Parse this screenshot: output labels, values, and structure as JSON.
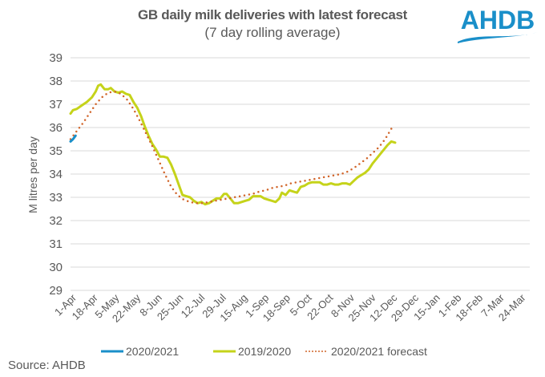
{
  "chart_data": {
    "type": "line",
    "title": "GB daily milk deliveries with latest forecast",
    "subtitle": "(7 day rolling average)",
    "ylabel": "M litres per day",
    "xlabel": "",
    "ylim": [
      29,
      39
    ],
    "yticks": [
      29,
      30,
      31,
      32,
      33,
      34,
      35,
      36,
      37,
      38,
      39
    ],
    "grid": true,
    "legend_position": "bottom",
    "x_days": 365,
    "xtick_labels": [
      "1-Apr",
      "18-Apr",
      "5-May",
      "22-May",
      "8-Jun",
      "25-Jun",
      "12-Jul",
      "29-Jul",
      "15-Aug",
      "1-Sep",
      "18-Sep",
      "5-Oct",
      "22-Oct",
      "8-Nov",
      "25-Nov",
      "12-Dec",
      "29-Dec",
      "15-Jan",
      "1-Feb",
      "18-Feb",
      "7-Mar",
      "24-Mar"
    ],
    "xtick_step_days": 17,
    "series": [
      {
        "name": "2020/2021",
        "color": "#1a8fc9",
        "style": "solid",
        "points": [
          [
            0,
            35.4
          ],
          [
            2,
            35.5
          ],
          [
            4,
            35.65
          ]
        ]
      },
      {
        "name": "2019/2020",
        "color": "#c5d31a",
        "style": "solid",
        "points": [
          [
            0,
            36.6
          ],
          [
            2,
            36.75
          ],
          [
            5,
            36.8
          ],
          [
            9,
            36.95
          ],
          [
            13,
            37.1
          ],
          [
            17,
            37.3
          ],
          [
            20,
            37.55
          ],
          [
            22,
            37.8
          ],
          [
            24,
            37.85
          ],
          [
            27,
            37.65
          ],
          [
            30,
            37.65
          ],
          [
            32,
            37.7
          ],
          [
            35,
            37.55
          ],
          [
            38,
            37.5
          ],
          [
            41,
            37.55
          ],
          [
            44,
            37.45
          ],
          [
            47,
            37.4
          ],
          [
            50,
            37.1
          ],
          [
            53,
            36.85
          ],
          [
            56,
            36.5
          ],
          [
            59,
            36.05
          ],
          [
            62,
            35.65
          ],
          [
            65,
            35.3
          ],
          [
            68,
            35.05
          ],
          [
            71,
            34.75
          ],
          [
            74,
            34.75
          ],
          [
            77,
            34.7
          ],
          [
            80,
            34.4
          ],
          [
            83,
            34.0
          ],
          [
            86,
            33.55
          ],
          [
            89,
            33.1
          ],
          [
            92,
            33.05
          ],
          [
            95,
            33.0
          ],
          [
            98,
            32.85
          ],
          [
            101,
            32.75
          ],
          [
            104,
            32.8
          ],
          [
            107,
            32.7
          ],
          [
            110,
            32.75
          ],
          [
            113,
            32.85
          ],
          [
            116,
            32.95
          ],
          [
            119,
            32.95
          ],
          [
            122,
            33.15
          ],
          [
            124,
            33.15
          ],
          [
            127,
            32.95
          ],
          [
            130,
            32.75
          ],
          [
            133,
            32.75
          ],
          [
            136,
            32.8
          ],
          [
            139,
            32.85
          ],
          [
            142,
            32.9
          ],
          [
            145,
            33.05
          ],
          [
            148,
            33.05
          ],
          [
            151,
            33.05
          ],
          [
            154,
            32.95
          ],
          [
            157,
            32.9
          ],
          [
            160,
            32.85
          ],
          [
            163,
            32.8
          ],
          [
            166,
            32.95
          ],
          [
            168,
            33.2
          ],
          [
            171,
            33.1
          ],
          [
            174,
            33.3
          ],
          [
            177,
            33.25
          ],
          [
            180,
            33.2
          ],
          [
            183,
            33.45
          ],
          [
            186,
            33.5
          ],
          [
            189,
            33.6
          ],
          [
            192,
            33.65
          ],
          [
            195,
            33.65
          ],
          [
            198,
            33.65
          ],
          [
            201,
            33.55
          ],
          [
            204,
            33.55
          ],
          [
            207,
            33.6
          ],
          [
            210,
            33.55
          ],
          [
            213,
            33.55
          ],
          [
            216,
            33.6
          ],
          [
            219,
            33.6
          ],
          [
            222,
            33.55
          ],
          [
            225,
            33.7
          ],
          [
            228,
            33.85
          ],
          [
            231,
            33.95
          ],
          [
            234,
            34.05
          ],
          [
            237,
            34.2
          ],
          [
            240,
            34.45
          ],
          [
            243,
            34.65
          ],
          [
            246,
            34.85
          ],
          [
            249,
            35.05
          ],
          [
            252,
            35.25
          ],
          [
            255,
            35.4
          ],
          [
            258,
            35.35
          ]
        ]
      },
      {
        "name": "2020/2021 forecast",
        "color": "#d1652a",
        "style": "dotted",
        "points": [
          [
            0,
            35.5
          ],
          [
            5,
            35.85
          ],
          [
            10,
            36.2
          ],
          [
            15,
            36.6
          ],
          [
            20,
            37.0
          ],
          [
            25,
            37.3
          ],
          [
            30,
            37.5
          ],
          [
            35,
            37.55
          ],
          [
            40,
            37.45
          ],
          [
            45,
            37.2
          ],
          [
            50,
            36.8
          ],
          [
            55,
            36.3
          ],
          [
            60,
            35.75
          ],
          [
            65,
            35.2
          ],
          [
            70,
            34.6
          ],
          [
            75,
            34.0
          ],
          [
            80,
            33.45
          ],
          [
            85,
            33.1
          ],
          [
            90,
            32.9
          ],
          [
            95,
            32.8
          ],
          [
            100,
            32.75
          ],
          [
            105,
            32.75
          ],
          [
            110,
            32.8
          ],
          [
            115,
            32.85
          ],
          [
            120,
            32.9
          ],
          [
            125,
            32.95
          ],
          [
            130,
            33.0
          ],
          [
            135,
            33.05
          ],
          [
            140,
            33.1
          ],
          [
            145,
            33.15
          ],
          [
            150,
            33.25
          ],
          [
            155,
            33.3
          ],
          [
            160,
            33.4
          ],
          [
            165,
            33.45
          ],
          [
            170,
            33.5
          ],
          [
            175,
            33.6
          ],
          [
            180,
            33.65
          ],
          [
            185,
            33.7
          ],
          [
            190,
            33.75
          ],
          [
            195,
            33.8
          ],
          [
            200,
            33.85
          ],
          [
            205,
            33.9
          ],
          [
            210,
            33.95
          ],
          [
            215,
            34.0
          ],
          [
            220,
            34.1
          ],
          [
            225,
            34.25
          ],
          [
            230,
            34.45
          ],
          [
            235,
            34.65
          ],
          [
            240,
            34.9
          ],
          [
            245,
            35.15
          ],
          [
            250,
            35.5
          ],
          [
            255,
            35.95
          ]
        ]
      }
    ]
  },
  "logo": {
    "text": "AHDB",
    "color": "#1a8fc9"
  },
  "source": "Source: AHDB"
}
